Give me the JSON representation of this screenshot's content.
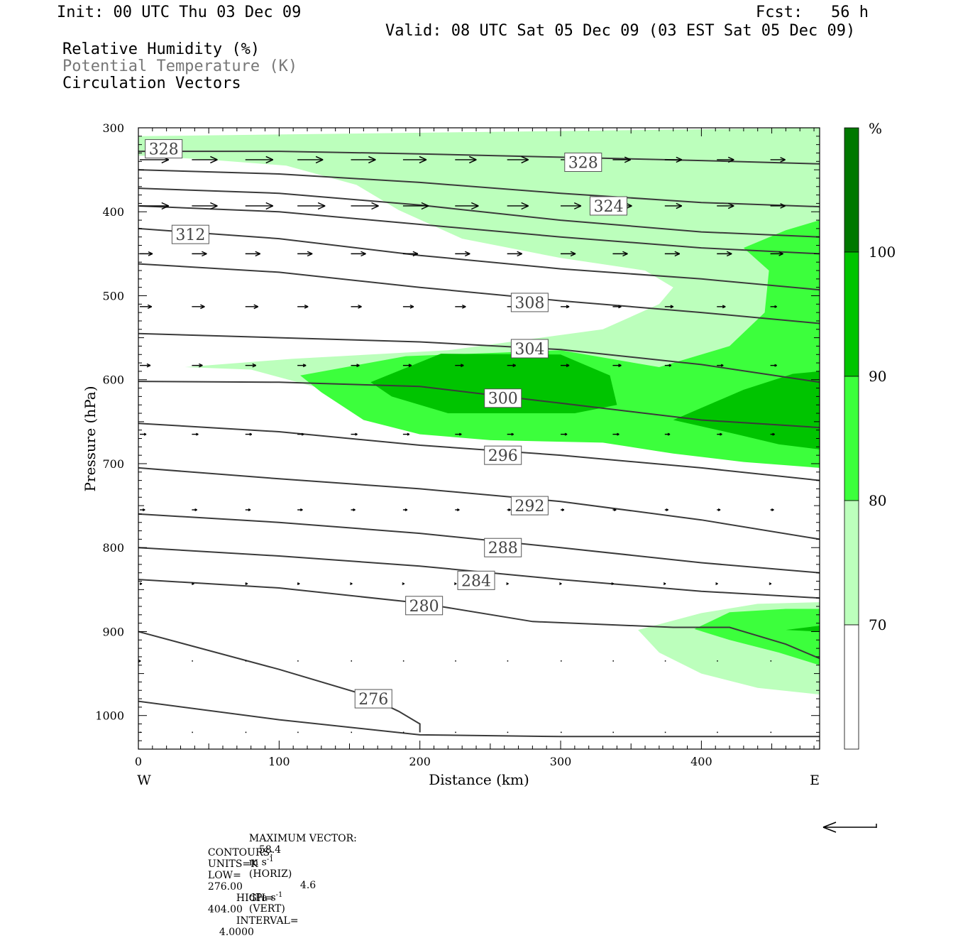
{
  "header": {
    "init": "Init: 00 UTC Thu 03 Dec 09",
    "fcst": "Fcst:   56 h",
    "valid": "Valid: 08 UTC Sat 05 Dec 09 (03 EST Sat 05 Dec 09)",
    "field1": "Relative Humidity (%)",
    "field2": "Potential Temperature (K)",
    "field3": "Circulation Vectors"
  },
  "footer": {
    "max_label": "MAXIMUM VECTOR:",
    "max_horiz": "58.4",
    "horiz_unit": "m s",
    "horiz_tag": "(HORIZ)",
    "max_vert": "4.6",
    "vert_unit": "dPa s",
    "vert_tag": "(VERT)",
    "exp": "-1",
    "contours_label": "CONTOURS:",
    "units": "UNITS=K",
    "low_label": "LOW=",
    "low": "276.00",
    "high_label": "HIGH=",
    "high": "404.00",
    "interval_label": "INTERVAL=",
    "interval": "4.0000"
  },
  "colors": {
    "rh70": "#bcffbc",
    "rh80": "#3cff3c",
    "rh90": "#00c400",
    "rh100": "#007800",
    "contour": "#3a3a3a"
  },
  "chart_data": {
    "type": "cross-section",
    "xlabel": "Distance (km)",
    "ylabel": "Pressure (hPa)",
    "xlim": [
      0,
      484
    ],
    "ylim": [
      1040,
      300
    ],
    "yscale": "linear",
    "x_ticks": [
      0,
      100,
      200,
      300,
      400
    ],
    "y_ticks": [
      300,
      400,
      500,
      600,
      700,
      800,
      900,
      1000
    ],
    "x_end_labels": {
      "left": "W",
      "right": "E"
    },
    "colorbar": {
      "unit": "%",
      "levels": [
        70,
        80,
        90,
        100
      ]
    },
    "rh_regions": [
      {
        "level": 70,
        "points": [
          [
            0,
            310
          ],
          [
            484,
            300
          ],
          [
            484,
            665
          ],
          [
            380,
            667
          ],
          [
            250,
            645
          ],
          [
            140,
            615
          ],
          [
            80,
            588
          ],
          [
            33,
            585
          ],
          [
            110,
            575
          ],
          [
            220,
            565
          ],
          [
            330,
            540
          ],
          [
            370,
            510
          ],
          [
            380,
            490
          ],
          [
            360,
            470
          ],
          [
            300,
            455
          ],
          [
            230,
            432
          ],
          [
            185,
            398
          ],
          [
            155,
            368
          ],
          [
            105,
            345
          ],
          [
            50,
            338
          ],
          [
            0,
            333
          ]
        ]
      },
      {
        "level": 80,
        "points": [
          [
            115,
            595
          ],
          [
            190,
            572
          ],
          [
            300,
            565
          ],
          [
            370,
            585
          ],
          [
            420,
            560
          ],
          [
            445,
            520
          ],
          [
            448,
            470
          ],
          [
            430,
            443
          ],
          [
            460,
            422
          ],
          [
            484,
            410
          ],
          [
            484,
            705
          ],
          [
            430,
            698
          ],
          [
            380,
            688
          ],
          [
            330,
            675
          ],
          [
            250,
            672
          ],
          [
            200,
            665
          ],
          [
            160,
            648
          ],
          [
            130,
            615
          ]
        ]
      },
      {
        "level": 90,
        "points": [
          [
            165,
            603
          ],
          [
            215,
            569
          ],
          [
            300,
            570
          ],
          [
            335,
            595
          ],
          [
            340,
            630
          ],
          [
            310,
            640
          ],
          [
            220,
            640
          ],
          [
            180,
            620
          ]
        ]
      },
      {
        "level": 90,
        "points": [
          [
            380,
            648
          ],
          [
            430,
            612
          ],
          [
            465,
            593
          ],
          [
            484,
            590
          ],
          [
            484,
            683
          ],
          [
            455,
            677
          ],
          [
            425,
            665
          ]
        ]
      },
      {
        "level": 70,
        "points": [
          [
            355,
            898
          ],
          [
            400,
            878
          ],
          [
            440,
            867
          ],
          [
            484,
            865
          ],
          [
            484,
            975
          ],
          [
            440,
            967
          ],
          [
            400,
            950
          ],
          [
            370,
            925
          ]
        ]
      },
      {
        "level": 80,
        "points": [
          [
            395,
            897
          ],
          [
            420,
            877
          ],
          [
            460,
            873
          ],
          [
            484,
            873
          ],
          [
            484,
            940
          ],
          [
            455,
            925
          ],
          [
            420,
            910
          ]
        ]
      },
      {
        "level": 90,
        "points": [
          [
            460,
            898
          ],
          [
            484,
            893
          ],
          [
            484,
            900
          ]
        ]
      }
    ],
    "isentropes": [
      {
        "theta": 328,
        "points": [
          [
            0,
            328
          ],
          [
            100,
            328
          ],
          [
            200,
            331
          ],
          [
            300,
            335
          ],
          [
            400,
            339
          ],
          [
            484,
            343
          ]
        ]
      },
      {
        "theta": 324,
        "points": [
          [
            0,
            350
          ],
          [
            100,
            355
          ],
          [
            200,
            365
          ],
          [
            300,
            378
          ],
          [
            400,
            389
          ],
          [
            484,
            394
          ]
        ]
      },
      {
        "theta": 320,
        "points": [
          [
            0,
            372
          ],
          [
            100,
            378
          ],
          [
            200,
            392
          ],
          [
            300,
            410
          ],
          [
            400,
            424
          ],
          [
            484,
            430
          ]
        ]
      },
      {
        "theta": 316,
        "points": [
          [
            0,
            393
          ],
          [
            100,
            400
          ],
          [
            200,
            415
          ],
          [
            300,
            430
          ],
          [
            400,
            443
          ],
          [
            484,
            450
          ]
        ]
      },
      {
        "theta": 312,
        "points": [
          [
            0,
            420
          ],
          [
            100,
            432
          ],
          [
            200,
            452
          ],
          [
            300,
            468
          ],
          [
            400,
            480
          ],
          [
            484,
            493
          ]
        ]
      },
      {
        "theta": 308,
        "points": [
          [
            0,
            462
          ],
          [
            100,
            472
          ],
          [
            200,
            490
          ],
          [
            300,
            506
          ],
          [
            400,
            520
          ],
          [
            484,
            533
          ]
        ]
      },
      {
        "theta": 304,
        "points": [
          [
            0,
            545
          ],
          [
            100,
            550
          ],
          [
            200,
            555
          ],
          [
            300,
            564
          ],
          [
            400,
            582
          ],
          [
            484,
            603
          ]
        ]
      },
      {
        "theta": 300,
        "points": [
          [
            0,
            602
          ],
          [
            100,
            603
          ],
          [
            200,
            608
          ],
          [
            300,
            628
          ],
          [
            400,
            648
          ],
          [
            484,
            657
          ]
        ]
      },
      {
        "theta": 296,
        "points": [
          [
            0,
            652
          ],
          [
            100,
            662
          ],
          [
            200,
            678
          ],
          [
            300,
            690
          ],
          [
            400,
            705
          ],
          [
            484,
            720
          ]
        ]
      },
      {
        "theta": 292,
        "points": [
          [
            0,
            705
          ],
          [
            100,
            718
          ],
          [
            200,
            730
          ],
          [
            300,
            745
          ],
          [
            400,
            767
          ],
          [
            484,
            790
          ]
        ]
      },
      {
        "theta": 288,
        "points": [
          [
            0,
            760
          ],
          [
            100,
            770
          ],
          [
            200,
            783
          ],
          [
            300,
            800
          ],
          [
            400,
            818
          ],
          [
            484,
            830
          ]
        ]
      },
      {
        "theta": 284,
        "points": [
          [
            0,
            800
          ],
          [
            100,
            810
          ],
          [
            200,
            822
          ],
          [
            300,
            838
          ],
          [
            400,
            852
          ],
          [
            484,
            860
          ]
        ]
      },
      {
        "theta": 280,
        "points": [
          [
            0,
            838
          ],
          [
            100,
            848
          ],
          [
            200,
            866
          ],
          [
            280,
            888
          ],
          [
            380,
            895
          ],
          [
            420,
            895
          ],
          [
            460,
            915
          ],
          [
            484,
            932
          ]
        ]
      },
      {
        "theta": 276,
        "points": [
          [
            0,
            900
          ],
          [
            100,
            945
          ],
          [
            160,
            975
          ],
          [
            185,
            995
          ],
          [
            200,
            1010
          ],
          [
            200,
            1020
          ]
        ]
      },
      {
        "theta": 272,
        "points": [
          [
            0,
            983
          ],
          [
            100,
            1005
          ],
          [
            200,
            1023
          ],
          [
            300,
            1025
          ],
          [
            484,
            1025
          ]
        ]
      }
    ],
    "contour_labels": [
      {
        "text": "328",
        "x": 18,
        "p": 325
      },
      {
        "text": "328",
        "x": 316,
        "p": 341
      },
      {
        "text": "324",
        "x": 334,
        "p": 393
      },
      {
        "text": "312",
        "x": 37,
        "p": 427
      },
      {
        "text": "308",
        "x": 278,
        "p": 508
      },
      {
        "text": "304",
        "x": 278,
        "p": 563
      },
      {
        "text": "300",
        "x": 259,
        "p": 622
      },
      {
        "text": "296",
        "x": 259,
        "p": 690
      },
      {
        "text": "292",
        "x": 278,
        "p": 750
      },
      {
        "text": "288",
        "x": 259,
        "p": 800
      },
      {
        "text": "284",
        "x": 240,
        "p": 839
      },
      {
        "text": "280",
        "x": 203,
        "p": 869
      },
      {
        "text": "276",
        "x": 167,
        "p": 980
      }
    ],
    "vectors": {
      "x": [
        0,
        37,
        75,
        112,
        150,
        187,
        224,
        261,
        299,
        336,
        373,
        410,
        448
      ],
      "rows": [
        {
          "p": 338,
          "u": [
            68,
            60,
            65,
            60,
            58,
            55,
            50,
            50,
            45,
            42,
            40,
            40,
            35
          ]
        },
        {
          "p": 393,
          "u": [
            68,
            60,
            65,
            65,
            65,
            60,
            55,
            50,
            48,
            45,
            40,
            40,
            35
          ]
        },
        {
          "p": 450,
          "u": [
            30,
            35,
            35,
            35,
            35,
            35,
            35,
            35,
            35,
            35,
            35,
            35,
            30
          ]
        },
        {
          "p": 513,
          "u": [
            28,
            30,
            30,
            25,
            25,
            25,
            25,
            25,
            20,
            20,
            20,
            20,
            15
          ]
        },
        {
          "p": 583,
          "u": [
            25,
            25,
            25,
            20,
            20,
            20,
            20,
            20,
            20,
            20,
            15,
            15,
            15
          ]
        },
        {
          "p": 665,
          "u": [
            15,
            15,
            15,
            15,
            15,
            15,
            15,
            15,
            15,
            15,
            12,
            12,
            10
          ]
        },
        {
          "p": 755,
          "u": [
            12,
            12,
            12,
            12,
            10,
            10,
            10,
            8,
            8,
            8,
            8,
            8,
            8
          ]
        },
        {
          "p": 843,
          "u": [
            5,
            5,
            5,
            5,
            3,
            3,
            3,
            3,
            2,
            2,
            2,
            2,
            2
          ]
        },
        {
          "p": 935,
          "u": [
            2,
            1,
            1,
            1,
            1,
            1,
            1,
            1,
            1,
            1,
            1,
            1,
            1
          ]
        },
        {
          "p": 1020,
          "u": [
            1,
            1,
            1,
            1,
            1,
            1,
            1,
            1,
            1,
            1,
            1,
            1,
            1
          ]
        }
      ]
    }
  }
}
